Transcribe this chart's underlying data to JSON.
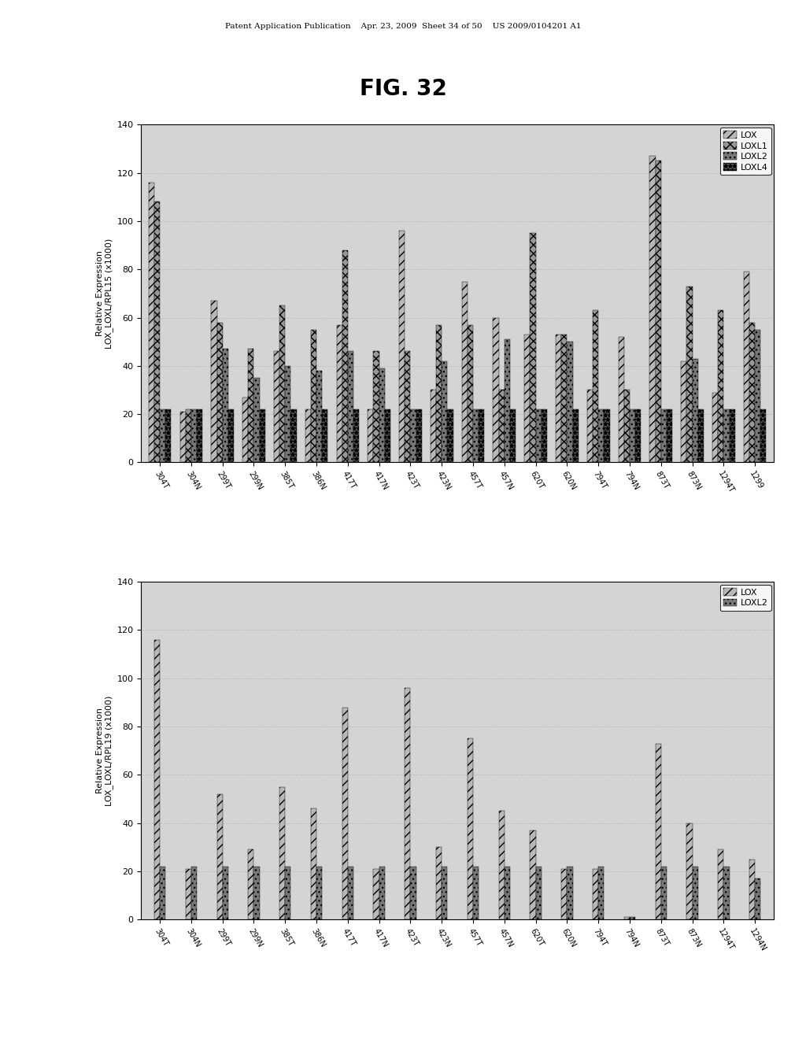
{
  "title": "FIG. 32",
  "header": "Patent Application Publication    Apr. 23, 2009  Sheet 34 of 50    US 2009/0104201 A1",
  "chart1": {
    "ylabel": "Relative Expression\nLOX_LOXL/RPL15 (x1000)",
    "ylim": [
      0,
      140
    ],
    "yticks": [
      0,
      20,
      40,
      60,
      80,
      100,
      120,
      140
    ],
    "categories": [
      "304T",
      "304N",
      "299T",
      "299N",
      "385T",
      "386N",
      "417T",
      "417N",
      "423T",
      "423N",
      "457T",
      "457N",
      "620T",
      "620N",
      "794T",
      "794N",
      "873T",
      "873N",
      "1294T",
      "1299"
    ],
    "legend_labels": [
      "LOX",
      "LOXL1",
      "LOXL2",
      "LOXL4"
    ],
    "LOX": [
      116,
      21,
      67,
      27,
      46,
      22,
      57,
      22,
      96,
      30,
      75,
      60,
      53,
      53,
      30,
      52,
      127,
      42,
      29,
      79
    ],
    "LOXL1": [
      108,
      22,
      58,
      47,
      65,
      55,
      88,
      46,
      46,
      57,
      57,
      30,
      95,
      53,
      63,
      30,
      125,
      73,
      63,
      58
    ],
    "LOXL2": [
      22,
      22,
      47,
      35,
      40,
      38,
      46,
      39,
      22,
      42,
      22,
      51,
      22,
      50,
      22,
      22,
      22,
      43,
      22,
      55
    ],
    "LOXL4": [
      22,
      22,
      22,
      22,
      22,
      22,
      22,
      22,
      22,
      22,
      22,
      22,
      22,
      22,
      22,
      22,
      22,
      22,
      22,
      22
    ]
  },
  "chart2": {
    "ylabel": "Relative Expression\nLOX_LOXL/RPL19 (x1000)",
    "ylim": [
      0,
      140
    ],
    "yticks": [
      0,
      20,
      40,
      60,
      80,
      100,
      120,
      140
    ],
    "categories": [
      "304T",
      "304N",
      "299T",
      "299N",
      "385T",
      "386N",
      "417T",
      "417N",
      "423T",
      "423N",
      "457T",
      "457N",
      "620T",
      "620N",
      "794T",
      "794N",
      "873T",
      "873N",
      "1294T",
      "1294N"
    ],
    "legend_labels": [
      "LOX",
      "LOXL2"
    ],
    "LOX": [
      116,
      21,
      52,
      29,
      55,
      46,
      88,
      21,
      96,
      30,
      75,
      45,
      37,
      21,
      21,
      1,
      73,
      40,
      29,
      25
    ],
    "LOXL2": [
      22,
      22,
      22,
      22,
      22,
      22,
      22,
      22,
      22,
      22,
      22,
      22,
      22,
      22,
      22,
      1,
      22,
      22,
      22,
      17
    ]
  },
  "bg_color": "#d4d4d4",
  "grid_color": "#aaaaaa",
  "bar_color_lox": "#b8b8b8",
  "bar_color_loxl1": "#989898",
  "bar_color_loxl2": "#787878",
  "bar_color_loxl4": "#505050",
  "hatch_lox": "///",
  "hatch_loxl1": "xxx",
  "hatch_loxl2": "...",
  "hatch_loxl4": "***"
}
